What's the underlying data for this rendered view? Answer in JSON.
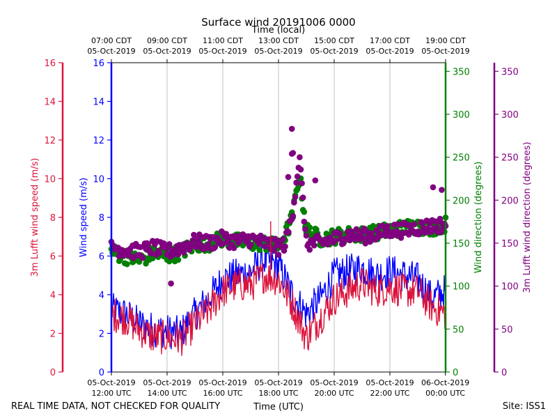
{
  "chart_data": {
    "type": "line",
    "title": "Surface wind 20191006 0000",
    "top_axis_label": "Time (local)",
    "top_ticks": [
      {
        "x": 0,
        "line1": "07:00 CDT",
        "line2": "05-Oct-2019"
      },
      {
        "x": 2,
        "line1": "09:00 CDT",
        "line2": "05-Oct-2019"
      },
      {
        "x": 4,
        "line1": "11:00 CDT",
        "line2": "05-Oct-2019"
      },
      {
        "x": 6,
        "line1": "13:00 CDT",
        "line2": "05-Oct-2019"
      },
      {
        "x": 8,
        "line1": "15:00 CDT",
        "line2": "05-Oct-2019"
      },
      {
        "x": 10,
        "line1": "17:00 CDT",
        "line2": "05-Oct-2019"
      },
      {
        "x": 12,
        "line1": "19:00 CDT",
        "line2": "05-Oct-2019"
      }
    ],
    "bottom_axis_label": "Time (UTC)",
    "bottom_ticks": [
      {
        "x": 0,
        "line1": "05-Oct-2019",
        "line2": "12:00 UTC"
      },
      {
        "x": 2,
        "line1": "05-Oct-2019",
        "line2": "14:00 UTC"
      },
      {
        "x": 4,
        "line1": "05-Oct-2019",
        "line2": "16:00 UTC"
      },
      {
        "x": 6,
        "line1": "05-Oct-2019",
        "line2": "18:00 UTC"
      },
      {
        "x": 8,
        "line1": "05-Oct-2019",
        "line2": "20:00 UTC"
      },
      {
        "x": 10,
        "line1": "05-Oct-2019",
        "line2": "22:00 UTC"
      },
      {
        "x": 11.99,
        "line1": "06-Oct-2019",
        "line2": "00:00 UTC"
      }
    ],
    "x_unit": "hours since 05-Oct-2019 12:00 UTC",
    "xlim": [
      0,
      12
    ],
    "left_outer_axis": {
      "label": "3m Lufft wind speed (m/s)",
      "ylim": [
        0,
        16
      ],
      "ticks": [
        0,
        2,
        4,
        6,
        8,
        10,
        12,
        14,
        16
      ],
      "color": "#dc143c"
    },
    "left_inner_axis": {
      "label": "Wind speed (m/s)",
      "ylim": [
        0,
        16
      ],
      "ticks": [
        0,
        2,
        4,
        6,
        8,
        10,
        12,
        14,
        16
      ],
      "color": "#0000ff"
    },
    "right_inner_axis": {
      "label": "Wind direction (degrees)",
      "ylim": [
        0,
        360
      ],
      "ticks": [
        0,
        50,
        100,
        150,
        200,
        250,
        300,
        350
      ],
      "color": "#008000"
    },
    "right_outer_axis": {
      "label": "3m Lufft wind direction (degrees)",
      "ylim": [
        0,
        360
      ],
      "ticks": [
        0,
        50,
        100,
        150,
        200,
        250,
        300,
        350
      ],
      "color": "#800080"
    },
    "grid": "vertical",
    "series": [
      {
        "name": "Wind speed (m/s)",
        "style": "line",
        "color": "#0000ff",
        "axis": "left",
        "x": [
          0,
          0.5,
          1,
          1.5,
          2,
          2.5,
          3,
          3.5,
          4,
          4.5,
          5,
          5.5,
          6,
          6.5,
          7,
          7.5,
          8,
          8.5,
          9,
          9.5,
          10,
          10.5,
          11,
          11.5,
          12
        ],
        "values": [
          3.2,
          3.0,
          2.5,
          2.2,
          2.1,
          2.0,
          3.0,
          3.8,
          4.8,
          5.0,
          5.2,
          5.8,
          5.5,
          4.0,
          3.0,
          3.8,
          5.0,
          5.2,
          5.4,
          5.0,
          5.2,
          5.0,
          4.8,
          3.8,
          4.2
        ]
      },
      {
        "name": "3m Lufft wind speed (m/s)",
        "style": "line",
        "color": "#dc143c",
        "axis": "left",
        "x": [
          0,
          0.5,
          1,
          1.5,
          2,
          2.5,
          3,
          3.5,
          4,
          4.5,
          5,
          5.5,
          6,
          6.5,
          7,
          7.5,
          8,
          8.5,
          9,
          9.5,
          10,
          10.5,
          11,
          11.5,
          12
        ],
        "values": [
          3.0,
          2.8,
          2.2,
          1.8,
          1.8,
          1.7,
          2.5,
          3.2,
          4.2,
          4.5,
          4.5,
          5.0,
          4.8,
          3.5,
          1.8,
          2.8,
          3.8,
          4.2,
          4.6,
          4.2,
          4.4,
          4.2,
          4.2,
          3.4,
          3.0
        ]
      },
      {
        "name": "Wind direction (degrees)",
        "style": "scatter",
        "color": "#008000",
        "axis": "right",
        "x": [
          0,
          0.5,
          1,
          1.5,
          2,
          2.5,
          3,
          3.5,
          4,
          4.5,
          5,
          5.5,
          6,
          6.25,
          6.5,
          6.75,
          7,
          7.5,
          8,
          8.5,
          9,
          9.5,
          10,
          10.5,
          11,
          11.5,
          12
        ],
        "values": [
          140,
          135,
          130,
          138,
          135,
          140,
          148,
          150,
          155,
          152,
          150,
          150,
          145,
          160,
          180,
          230,
          165,
          155,
          158,
          160,
          160,
          162,
          165,
          168,
          170,
          168,
          172
        ]
      },
      {
        "name": "3m Lufft wind direction (degrees)",
        "style": "scatter",
        "color": "#800080",
        "axis": "right",
        "x": [
          0,
          0.5,
          1,
          1.5,
          2,
          2.5,
          3,
          3.5,
          4,
          4.5,
          5,
          5.5,
          6,
          6.25,
          6.5,
          6.75,
          7,
          7.5,
          8,
          8.5,
          9,
          9.5,
          10,
          10.5,
          11,
          11.5,
          12
        ],
        "values": [
          145,
          142,
          140,
          145,
          140,
          145,
          152,
          150,
          155,
          152,
          155,
          150,
          145,
          150,
          185,
          250,
          150,
          150,
          155,
          160,
          158,
          160,
          165,
          165,
          168,
          170,
          172
        ]
      }
    ],
    "outliers": [
      {
        "series": "3m Lufft wind direction (degrees)",
        "x": 6.48,
        "y": 283
      },
      {
        "series": "3m Lufft wind direction (degrees)",
        "x": 6.48,
        "y": 254
      },
      {
        "series": "3m Lufft wind direction (degrees)",
        "x": 6.52,
        "y": 255
      },
      {
        "series": "3m Lufft wind direction (degrees)",
        "x": 6.35,
        "y": 227
      },
      {
        "series": "3m Lufft wind direction (degrees)",
        "x": 7.32,
        "y": 223
      },
      {
        "series": "3m Lufft wind direction (degrees)",
        "x": 11.55,
        "y": 215
      },
      {
        "series": "3m Lufft wind direction (degrees)",
        "x": 11.86,
        "y": 212
      },
      {
        "series": "3m Lufft wind direction (degrees)",
        "x": 2.14,
        "y": 103
      },
      {
        "series": "3m Lufft wind speed (m/s)",
        "x": 5.72,
        "y": 7.8
      }
    ]
  },
  "footer": {
    "left_note": "REAL TIME DATA, NOT CHECKED FOR QUALITY",
    "site": "Site: ISS1"
  }
}
